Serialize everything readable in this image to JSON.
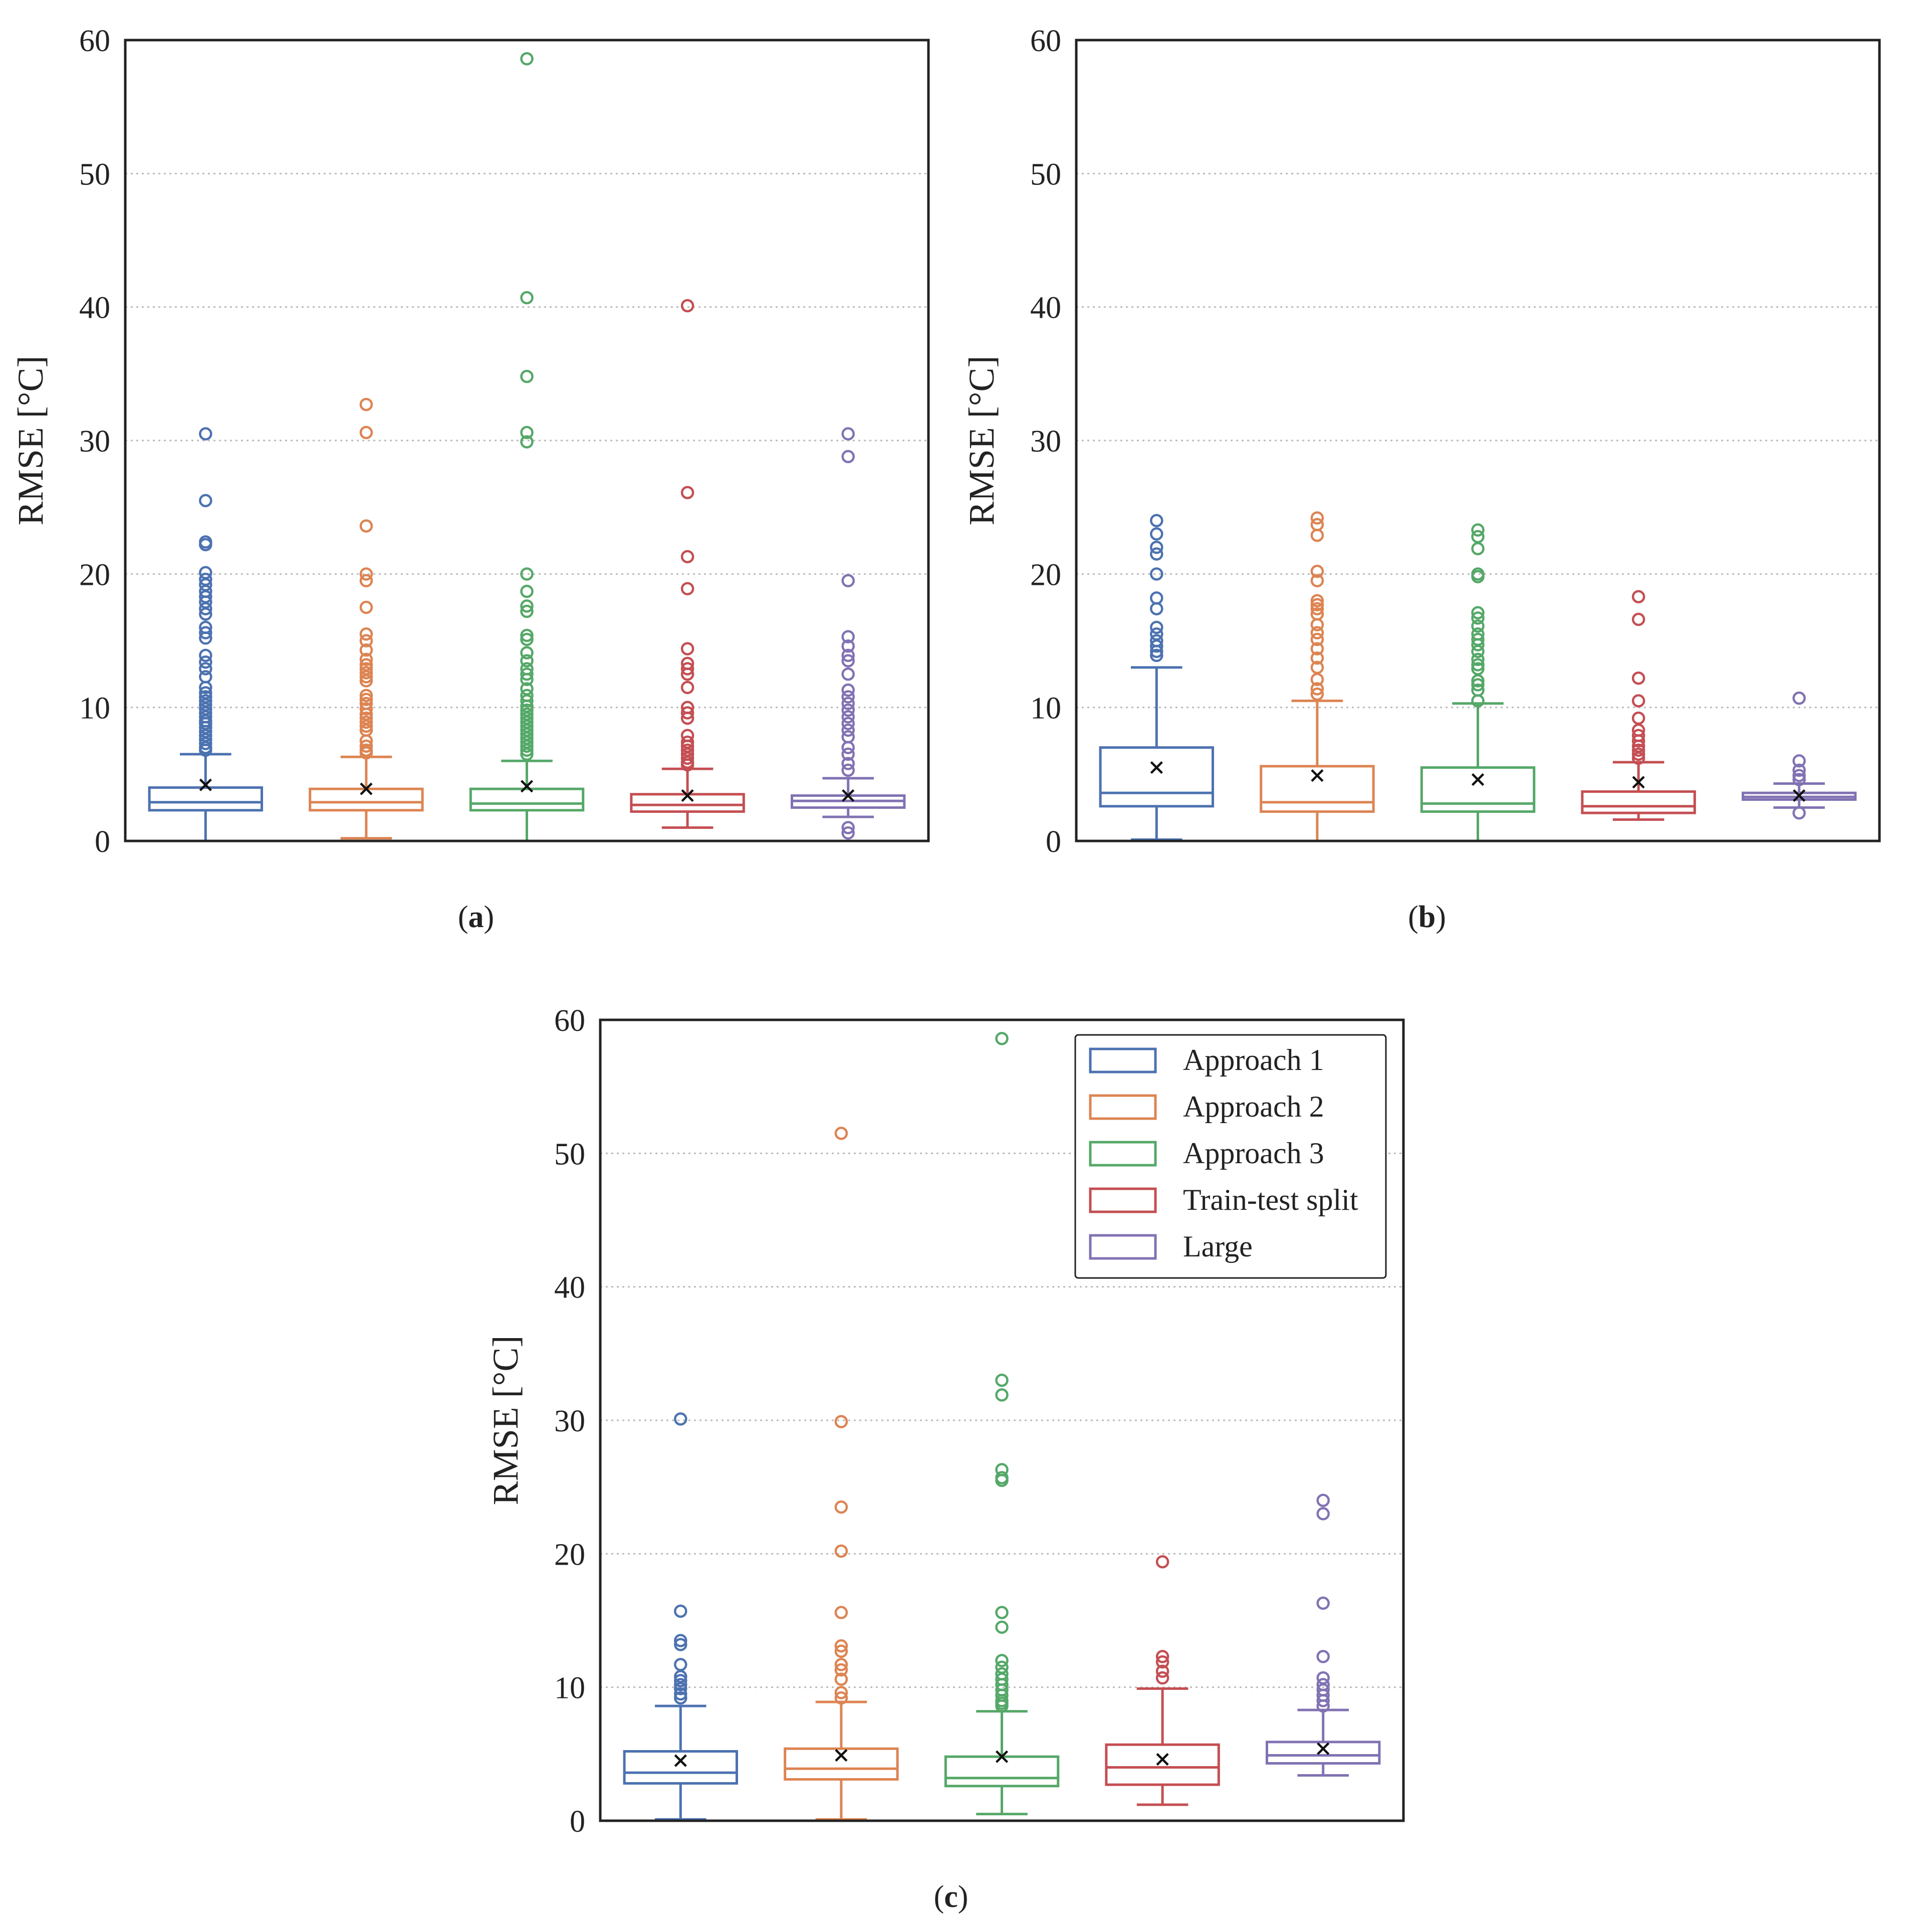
{
  "chart_data": [
    {
      "type": "box",
      "caption": {
        "open": "(",
        "letter": "a",
        "close": ")"
      },
      "ylabel": "RMSE [°C]",
      "ylim": [
        0,
        60
      ],
      "yticks": [
        0,
        10,
        20,
        30,
        40,
        50,
        60
      ],
      "grid": "y-dotted",
      "series": [
        {
          "name": "Approach 1",
          "whisker_low": 0,
          "q1": 2.3,
          "median": 2.9,
          "q3": 4.0,
          "whisker_high": 6.5,
          "mean": 4.2,
          "outliers": [
            30.5,
            25.5,
            22.4,
            22.2,
            20.1,
            19.6,
            19.2,
            18.7,
            18.3,
            17.9,
            17.4,
            17.0,
            16.0,
            15.6,
            15.2,
            13.9,
            13.4,
            12.9,
            12.3,
            11.5,
            11.1,
            10.8,
            10.5,
            10.2,
            9.9,
            9.6,
            9.3,
            9.0,
            8.8,
            8.5,
            8.2,
            7.9,
            7.6,
            7.3,
            7.0,
            6.8
          ]
        },
        {
          "name": "Approach 2",
          "whisker_low": 0.2,
          "q1": 2.3,
          "median": 2.9,
          "q3": 3.9,
          "whisker_high": 6.3,
          "mean": 3.9,
          "outliers": [
            32.7,
            30.6,
            23.6,
            20.0,
            19.5,
            17.5,
            15.5,
            15.0,
            14.3,
            13.6,
            13.2,
            12.9,
            12.6,
            12.3,
            12.0,
            10.9,
            10.6,
            10.3,
            9.9,
            9.5,
            9.2,
            8.9,
            8.6,
            8.3,
            7.5,
            7.1,
            6.8,
            6.6
          ]
        },
        {
          "name": "Approach 3",
          "whisker_low": 0,
          "q1": 2.3,
          "median": 2.8,
          "q3": 3.9,
          "whisker_high": 6.0,
          "mean": 4.1,
          "outliers": [
            58.6,
            40.7,
            34.8,
            30.6,
            29.9,
            20.0,
            18.7,
            17.6,
            17.2,
            15.4,
            15.1,
            14.1,
            13.5,
            12.9,
            12.5,
            12.1,
            11.4,
            10.9,
            10.5,
            10.1,
            9.8,
            9.5,
            9.2,
            8.9,
            8.6,
            8.3,
            8.0,
            7.7,
            7.4,
            7.1,
            6.8,
            6.5
          ]
        },
        {
          "name": "Train-test split",
          "whisker_low": 1.0,
          "q1": 2.2,
          "median": 2.7,
          "q3": 3.5,
          "whisker_high": 5.4,
          "mean": 3.4,
          "outliers": [
            40.1,
            26.1,
            21.3,
            18.9,
            14.4,
            13.3,
            12.9,
            12.5,
            11.5,
            10.0,
            9.6,
            9.2,
            7.9,
            7.4,
            7.1,
            6.8,
            6.5,
            6.2,
            5.9,
            5.7
          ]
        },
        {
          "name": "Large",
          "whisker_low": 1.8,
          "q1": 2.5,
          "median": 3.0,
          "q3": 3.4,
          "whisker_high": 4.7,
          "mean": 3.4,
          "outliers": [
            30.5,
            28.8,
            19.5,
            15.3,
            14.6,
            13.9,
            13.5,
            12.5,
            11.3,
            10.8,
            10.3,
            9.8,
            9.3,
            8.8,
            8.3,
            7.8,
            7.0,
            6.5,
            5.8,
            5.3,
            1.0,
            0.6
          ]
        }
      ]
    },
    {
      "type": "box",
      "caption": {
        "open": "(",
        "letter": "b",
        "close": ")"
      },
      "ylabel": "RMSE [°C]",
      "ylim": [
        0,
        60
      ],
      "yticks": [
        0,
        10,
        20,
        30,
        40,
        50,
        60
      ],
      "grid": "y-dotted",
      "series": [
        {
          "name": "Approach 1",
          "whisker_low": 0.1,
          "q1": 2.6,
          "median": 3.6,
          "q3": 7.0,
          "whisker_high": 13.0,
          "mean": 5.5,
          "outliers": [
            24.0,
            23.0,
            22.0,
            21.5,
            20.0,
            18.2,
            17.4,
            16.0,
            15.5,
            15.0,
            14.6,
            14.2,
            13.9
          ]
        },
        {
          "name": "Approach 2",
          "whisker_low": 0,
          "q1": 2.2,
          "median": 2.9,
          "q3": 5.6,
          "whisker_high": 10.5,
          "mean": 4.9,
          "outliers": [
            24.2,
            23.7,
            22.9,
            20.2,
            19.5,
            18.0,
            17.7,
            17.4,
            17.0,
            16.2,
            15.6,
            15.1,
            14.4,
            13.7,
            13.0,
            12.1,
            11.4,
            11.0
          ]
        },
        {
          "name": "Approach 3",
          "whisker_low": 0,
          "q1": 2.2,
          "median": 2.8,
          "q3": 5.5,
          "whisker_high": 10.3,
          "mean": 4.6,
          "outliers": [
            23.3,
            22.8,
            21.9,
            20.0,
            19.8,
            17.1,
            16.7,
            16.1,
            15.5,
            15.1,
            14.7,
            14.2,
            13.6,
            13.2,
            12.9,
            12.0,
            11.7,
            11.3,
            10.5
          ]
        },
        {
          "name": "Train-test split",
          "whisker_low": 1.6,
          "q1": 2.1,
          "median": 2.6,
          "q3": 3.7,
          "whisker_high": 5.9,
          "mean": 4.4,
          "outliers": [
            18.3,
            16.6,
            12.2,
            10.5,
            9.2,
            8.3,
            7.9,
            7.5,
            7.1,
            6.8,
            6.5,
            6.2
          ]
        },
        {
          "name": "Large",
          "whisker_low": 2.5,
          "q1": 3.1,
          "median": 3.3,
          "q3": 3.6,
          "whisker_high": 4.3,
          "mean": 3.4,
          "outliers": [
            10.7,
            6.0,
            5.3,
            4.9,
            4.6,
            2.1
          ]
        }
      ]
    },
    {
      "type": "box",
      "caption": {
        "open": "(",
        "letter": "c",
        "close": ")"
      },
      "ylabel": "RMSE [°C]",
      "ylim": [
        0,
        60
      ],
      "yticks": [
        0,
        10,
        20,
        30,
        40,
        50,
        60
      ],
      "grid": "y-dotted",
      "legend": "top-right",
      "series": [
        {
          "name": "Approach 1",
          "whisker_low": 0.1,
          "q1": 2.8,
          "median": 3.6,
          "q3": 5.2,
          "whisker_high": 8.6,
          "mean": 4.5,
          "outliers": [
            30.1,
            15.7,
            13.5,
            13.2,
            11.7,
            10.8,
            10.5,
            10.2,
            9.9,
            9.5,
            9.2
          ]
        },
        {
          "name": "Approach 2",
          "whisker_low": 0.1,
          "q1": 3.1,
          "median": 3.9,
          "q3": 5.4,
          "whisker_high": 8.9,
          "mean": 4.9,
          "outliers": [
            51.5,
            29.9,
            23.5,
            20.2,
            15.6,
            13.1,
            12.7,
            11.7,
            11.3,
            10.6,
            9.6,
            9.2
          ]
        },
        {
          "name": "Approach 3",
          "whisker_low": 0.5,
          "q1": 2.6,
          "median": 3.2,
          "q3": 4.8,
          "whisker_high": 8.2,
          "mean": 4.8,
          "outliers": [
            58.6,
            33.0,
            31.9,
            26.3,
            25.7,
            25.5,
            15.6,
            14.5,
            12.0,
            11.5,
            11.0,
            10.6,
            10.2,
            9.8,
            9.4,
            9.0,
            8.8,
            8.6
          ]
        },
        {
          "name": "Train-test split",
          "whisker_low": 1.2,
          "q1": 2.7,
          "median": 4.0,
          "q3": 5.7,
          "whisker_high": 9.9,
          "mean": 4.6,
          "outliers": [
            19.4,
            12.3,
            11.9,
            11.2,
            10.7
          ]
        },
        {
          "name": "Large",
          "whisker_low": 3.4,
          "q1": 4.3,
          "median": 4.9,
          "q3": 5.9,
          "whisker_high": 8.3,
          "mean": 5.4,
          "outliers": [
            24.0,
            23.0,
            16.3,
            12.3,
            10.7,
            10.2,
            9.8,
            9.4,
            9.0,
            8.6
          ]
        }
      ]
    }
  ],
  "colors": {
    "Approach 1": "#4c72b0",
    "Approach 2": "#dd8452",
    "Approach 3": "#55a868",
    "Train-test split": "#c44e52",
    "Large": "#8172b3",
    "mean_marker": "#111111",
    "grid": "#bbbbbb",
    "axis": "#222222"
  }
}
